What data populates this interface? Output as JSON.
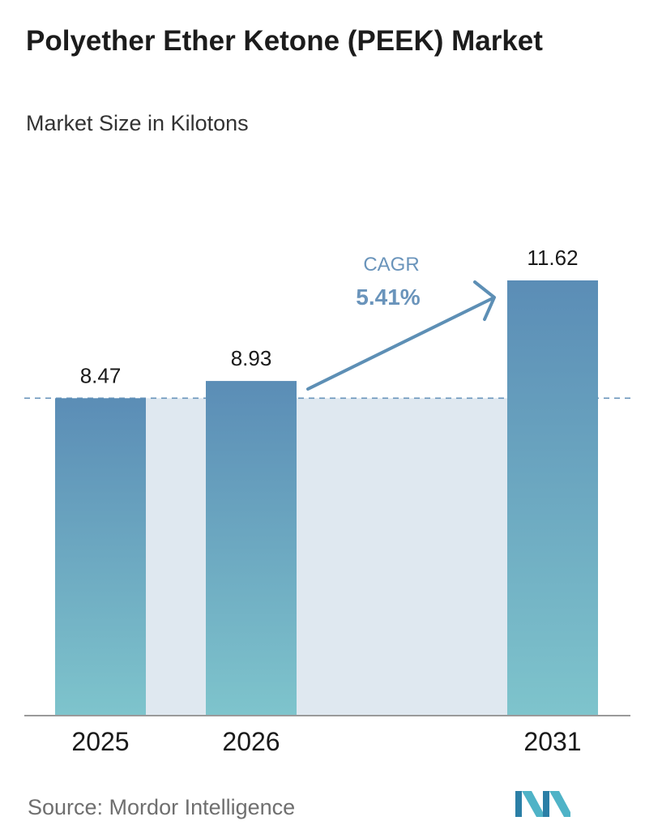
{
  "header": {
    "title": "Polyether Ether Ketone (PEEK) Market",
    "subtitle": "Market Size in Kilotons"
  },
  "footer": {
    "source": "Source: Mordor Intelligence",
    "logo_icon": "mordor-intelligence-logo-icon"
  },
  "annotation": {
    "cagr_label": "CAGR",
    "cagr_value": "5.41%"
  },
  "colors": {
    "bar_top": "#5b8db6",
    "bar_bottom": "#7ec4cc",
    "band": "#dfe8f0",
    "arrow": "#5d8fb5",
    "cagr_label": "#6a94bb",
    "dashed_line": "#6a94bb",
    "axis": "#9a9a9a"
  },
  "chart_data": {
    "type": "bar",
    "title": "Polyether Ether Ketone (PEEK) Market",
    "subtitle": "Market Size in Kilotons",
    "categories": [
      "2025",
      "2026",
      "2031"
    ],
    "values": [
      8.47,
      8.93,
      11.62
    ],
    "value_labels": [
      "8.47",
      "8.93",
      "11.62"
    ],
    "ylim": [
      0,
      11.62
    ],
    "grid": false,
    "legend": "none",
    "reference_line": 8.47,
    "cagr": "5.41%"
  }
}
